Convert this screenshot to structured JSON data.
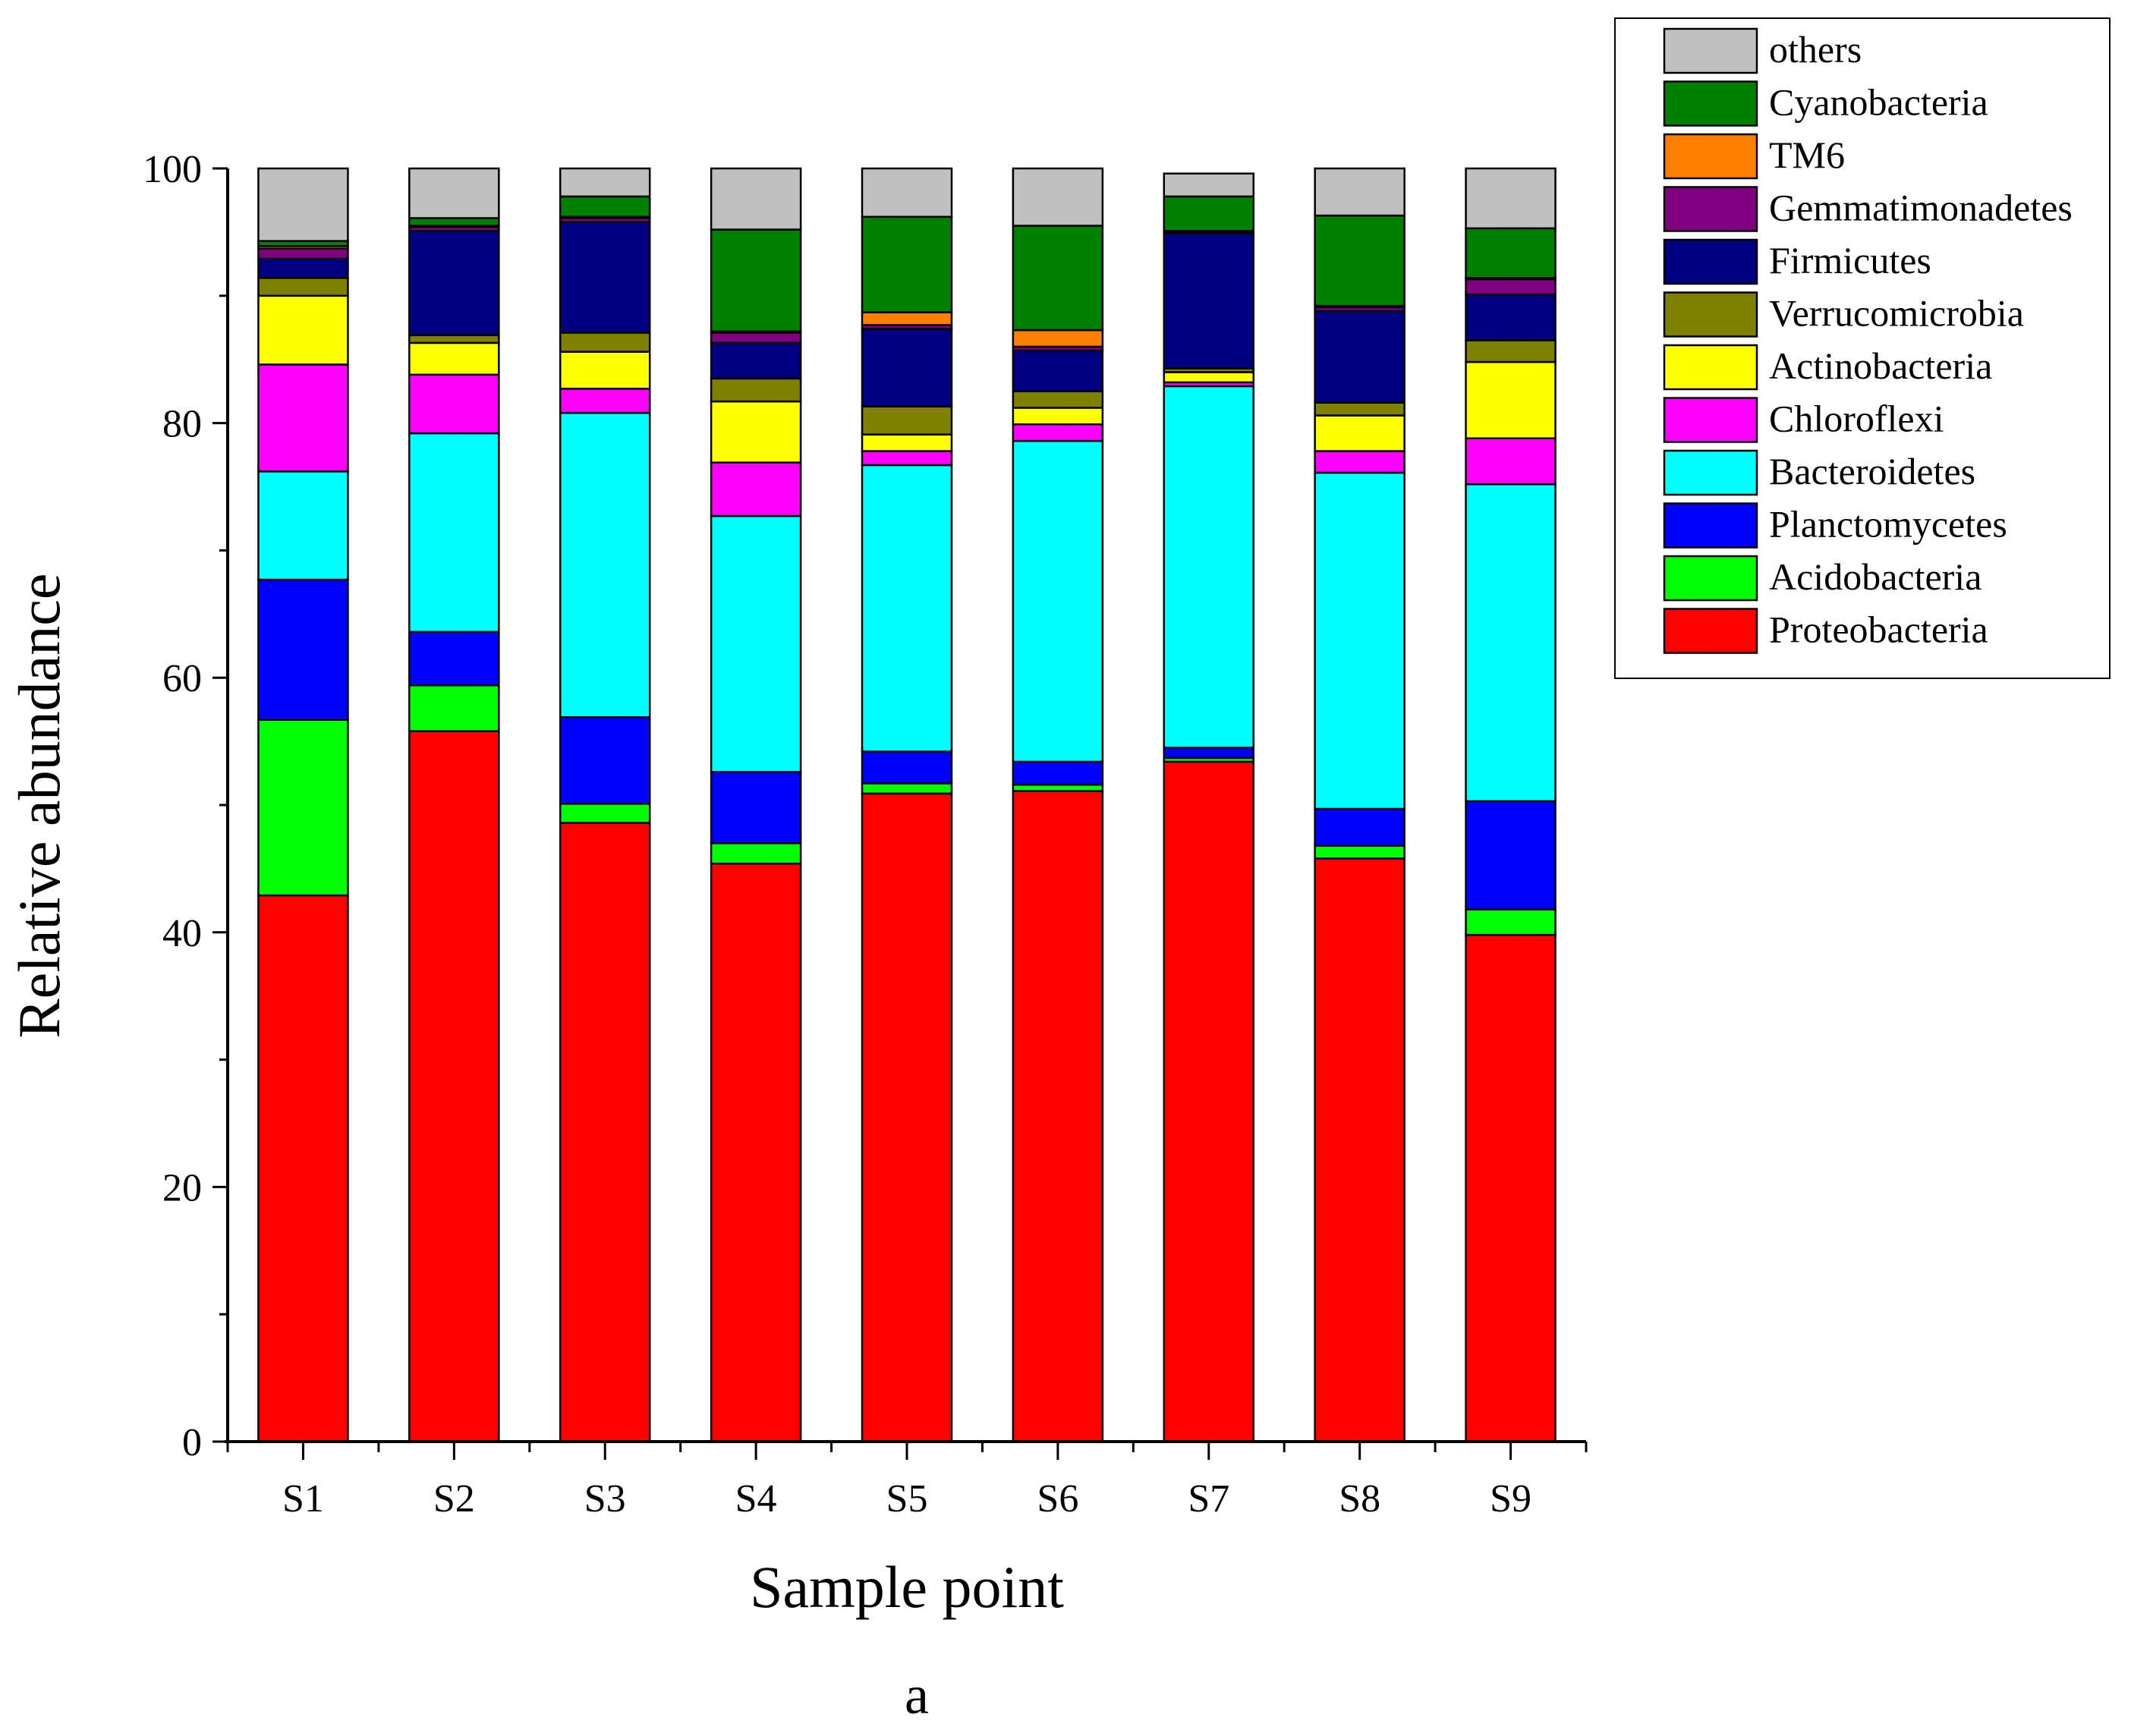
{
  "chart_data": {
    "type": "bar",
    "stacked": true,
    "title": "",
    "xlabel": "Sample point",
    "ylabel": "Relative abundance",
    "caption": "a",
    "ylim": [
      0,
      100
    ],
    "yticks": [
      0,
      20,
      40,
      60,
      80,
      100
    ],
    "categories": [
      "S1",
      "S2",
      "S3",
      "S4",
      "S5",
      "S6",
      "S7",
      "S8",
      "S9"
    ],
    "legend_position": "top-right",
    "series": [
      {
        "name": "Proteobacteria",
        "color": "#FF0000",
        "values": [
          42.9,
          55.8,
          48.6,
          45.4,
          50.9,
          51.1,
          53.4,
          45.8,
          39.8
        ]
      },
      {
        "name": "Acidobacteria",
        "color": "#00FF00",
        "values": [
          13.8,
          3.6,
          1.5,
          1.6,
          0.8,
          0.5,
          0.3,
          1.0,
          2.0
        ]
      },
      {
        "name": "Planctomycetes",
        "color": "#0000FF",
        "values": [
          11.0,
          4.2,
          6.8,
          5.6,
          2.5,
          1.8,
          0.8,
          2.9,
          8.5
        ]
      },
      {
        "name": "Bacteroidetes",
        "color": "#00FFFF",
        "values": [
          8.5,
          15.6,
          23.9,
          20.1,
          22.5,
          25.2,
          28.4,
          26.4,
          24.9
        ]
      },
      {
        "name": "Chloroflexi",
        "color": "#FF00FF",
        "values": [
          8.4,
          4.6,
          1.9,
          4.2,
          1.1,
          1.3,
          0.3,
          1.7,
          3.6
        ]
      },
      {
        "name": "Actinobacteria",
        "color": "#FFFF00",
        "values": [
          5.4,
          2.5,
          2.9,
          4.8,
          1.3,
          1.3,
          0.8,
          2.8,
          6.0
        ]
      },
      {
        "name": "Verrucomicrobia",
        "color": "#808000",
        "values": [
          1.4,
          0.6,
          1.5,
          1.8,
          2.2,
          1.3,
          0.3,
          1.0,
          1.7
        ]
      },
      {
        "name": "Firmicutes",
        "color": "#000080",
        "values": [
          1.5,
          8.2,
          8.7,
          2.8,
          6.1,
          3.2,
          10.6,
          7.2,
          3.6
        ]
      },
      {
        "name": "Gemmatimonadetes",
        "color": "#800080",
        "values": [
          0.8,
          0.3,
          0.3,
          0.8,
          0.3,
          0.3,
          0.1,
          0.3,
          1.2
        ]
      },
      {
        "name": "TM6",
        "color": "#FF8000",
        "values": [
          0.2,
          0.1,
          0.1,
          0.1,
          1.0,
          1.3,
          0.1,
          0.1,
          0.1
        ]
      },
      {
        "name": "Cyanobacteria",
        "color": "#008000",
        "values": [
          0.4,
          0.6,
          1.6,
          8.0,
          7.5,
          8.2,
          2.7,
          7.1,
          3.9
        ]
      },
      {
        "name": "others",
        "color": "#C0C0C0",
        "values": [
          5.7,
          3.9,
          2.2,
          4.8,
          3.8,
          4.5,
          1.8,
          3.7,
          4.7
        ]
      }
    ]
  }
}
